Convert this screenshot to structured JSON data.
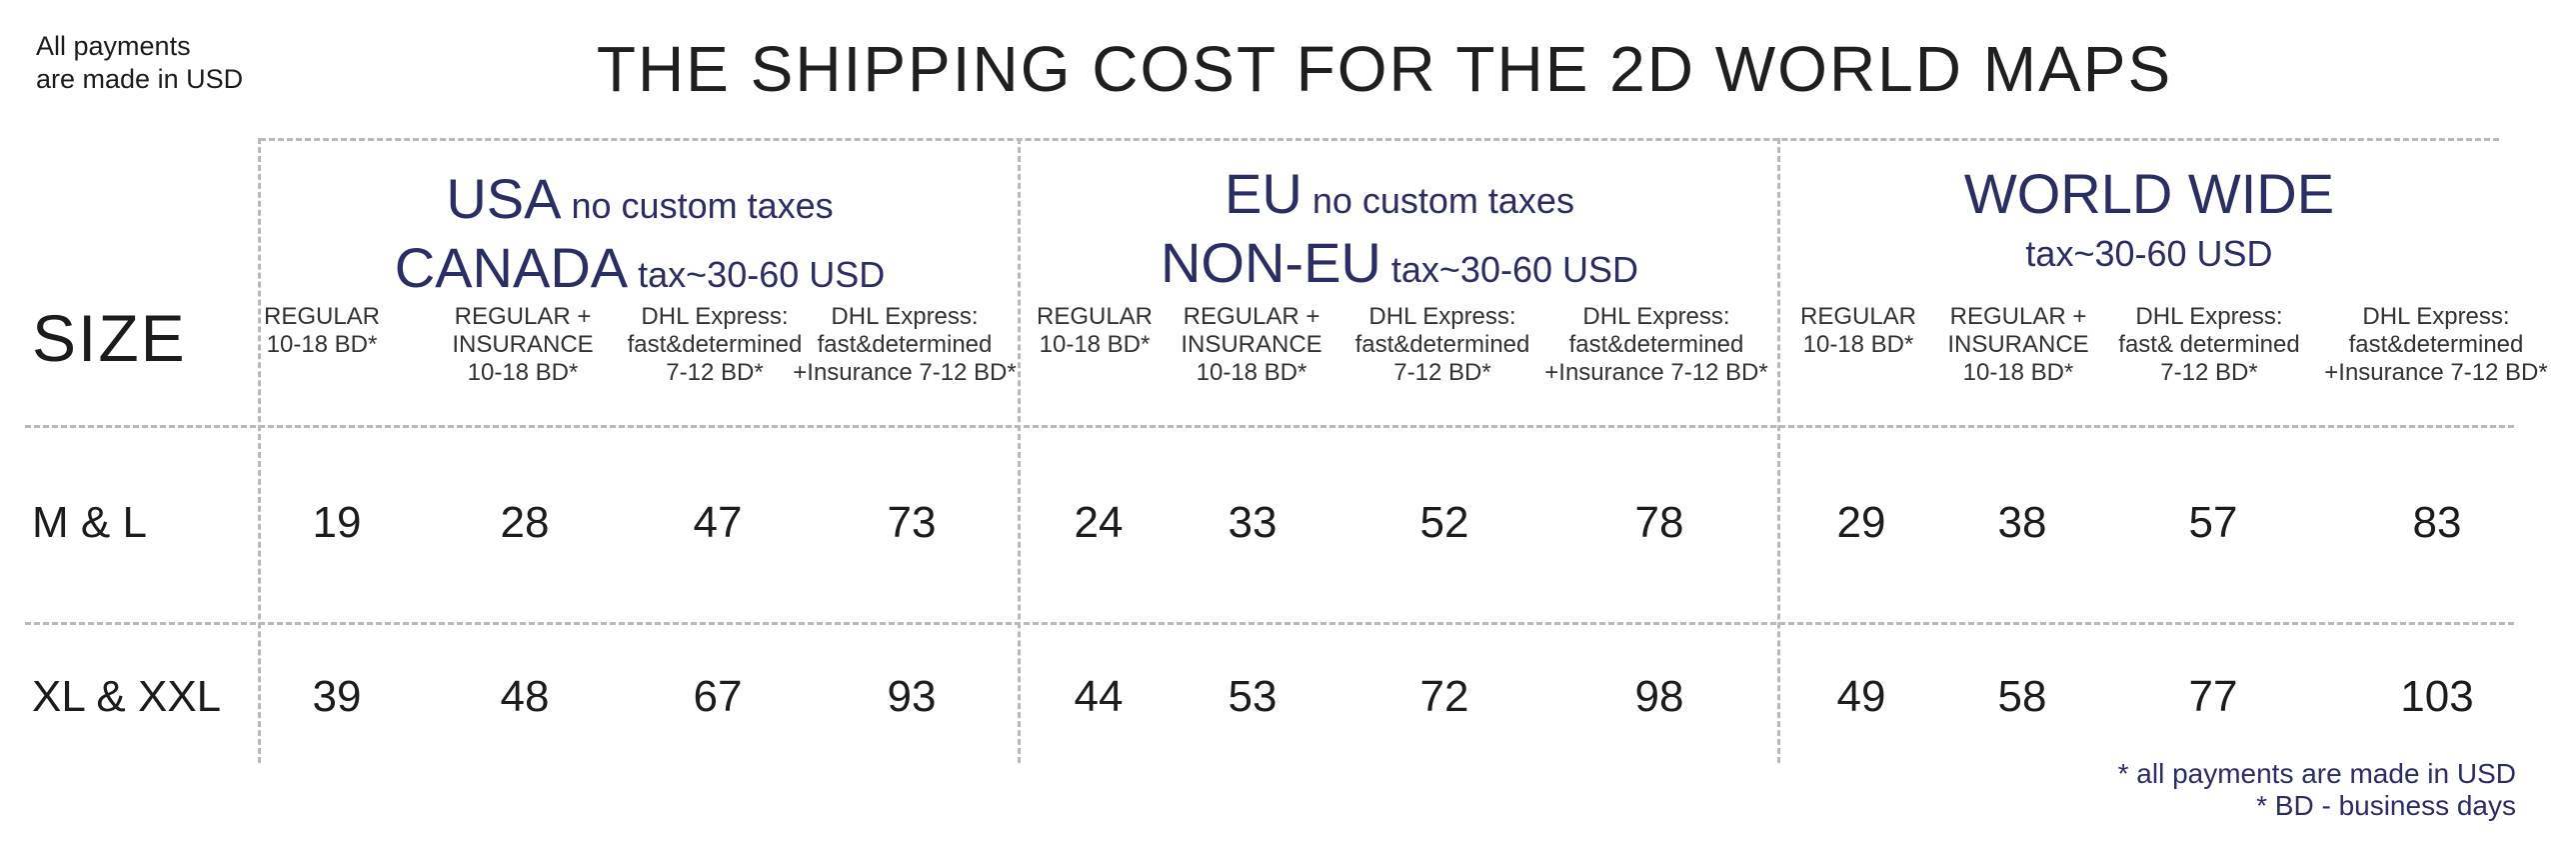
{
  "note": [
    "All payments",
    "are made in USD"
  ],
  "title": "THE SHIPPING COST FOR THE 2D WORLD MAPS",
  "size_header": "SIZE",
  "regions": [
    {
      "line1_big": "USA",
      "line1_small": " no custom taxes",
      "line2_big": "CANADA",
      "line2_small": " tax~30-60 USD"
    },
    {
      "line1_big": "EU",
      "line1_small": " no custom taxes",
      "line2_big": "NON-EU",
      "line2_small": " tax~30-60 USD"
    },
    {
      "line1_big": "WORLD WIDE",
      "line1_small": "",
      "line2_big": "",
      "line2_small": "tax~30-60 USD"
    }
  ],
  "methods": [
    [
      "REGULAR\n10-18 BD*",
      "REGULAR  +\nINSURANCE\n10-18 BD*",
      "DHL Express:\nfast&determined\n7-12 BD*",
      "DHL Express:\nfast&determined\n+Insurance 7-12 BD*"
    ],
    [
      "REGULAR\n10-18 BD*",
      "REGULAR  +\nINSURANCE\n10-18 BD*",
      "DHL Express:\nfast&determined\n7-12 BD*",
      "DHL Express:\nfast&determined\n+Insurance 7-12 BD*"
    ],
    [
      "REGULAR\n10-18 BD*",
      "REGULAR  +\nINSURANCE\n10-18 BD*",
      "DHL Express:\nfast& determined\n7-12 BD*",
      "DHL Express:\nfast&determined\n+Insurance 7-12 BD*"
    ]
  ],
  "rows": [
    {
      "label": "M & L",
      "prices": [
        "19",
        "28",
        "47",
        "73",
        "24",
        "33",
        "52",
        "78",
        "29",
        "38",
        "57",
        "83"
      ]
    },
    {
      "label": "XL & XXL",
      "prices": [
        "39",
        "48",
        "67",
        "93",
        "44",
        "53",
        "72",
        "98",
        "49",
        "58",
        "77",
        "103"
      ]
    }
  ],
  "footnotes": [
    "* all payments are made in USD",
    "* BD - business days"
  ],
  "colors": {
    "accent": "#2b2e63",
    "divider": "#b9b9b9",
    "text": "#1c1c1c"
  }
}
